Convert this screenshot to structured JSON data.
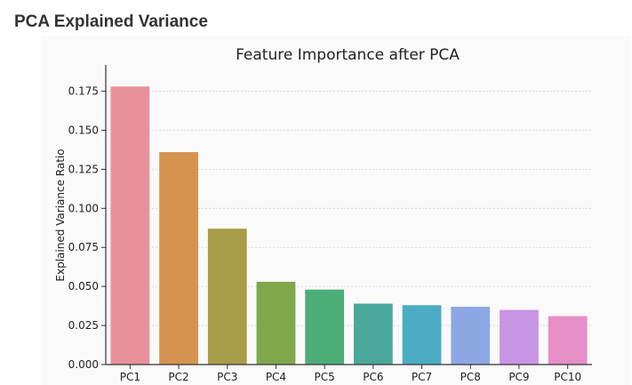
{
  "page": {
    "heading": "PCA Explained Variance"
  },
  "chart_data": {
    "type": "bar",
    "title": "Feature Importance after PCA",
    "xlabel": "",
    "ylabel": "Explained Variance Ratio",
    "categories": [
      "PC1",
      "PC2",
      "PC3",
      "PC4",
      "PC5",
      "PC6",
      "PC7",
      "PC8",
      "PC9",
      "PC10"
    ],
    "values": [
      0.178,
      0.136,
      0.087,
      0.053,
      0.048,
      0.039,
      0.038,
      0.037,
      0.035,
      0.031
    ],
    "colors": [
      "#e8919b",
      "#d59350",
      "#a89c49",
      "#7ea84a",
      "#4cae77",
      "#4aa99c",
      "#4cacc4",
      "#8ca8e4",
      "#c995e5",
      "#e68ec8"
    ],
    "ylim": [
      0,
      0.185
    ],
    "yticks": [
      0.0,
      0.025,
      0.05,
      0.075,
      0.1,
      0.125,
      0.15,
      0.175
    ],
    "ytick_labels": [
      "0.000",
      "0.025",
      "0.050",
      "0.075",
      "0.100",
      "0.125",
      "0.150",
      "0.175"
    ],
    "grid": true,
    "legend": "none"
  }
}
